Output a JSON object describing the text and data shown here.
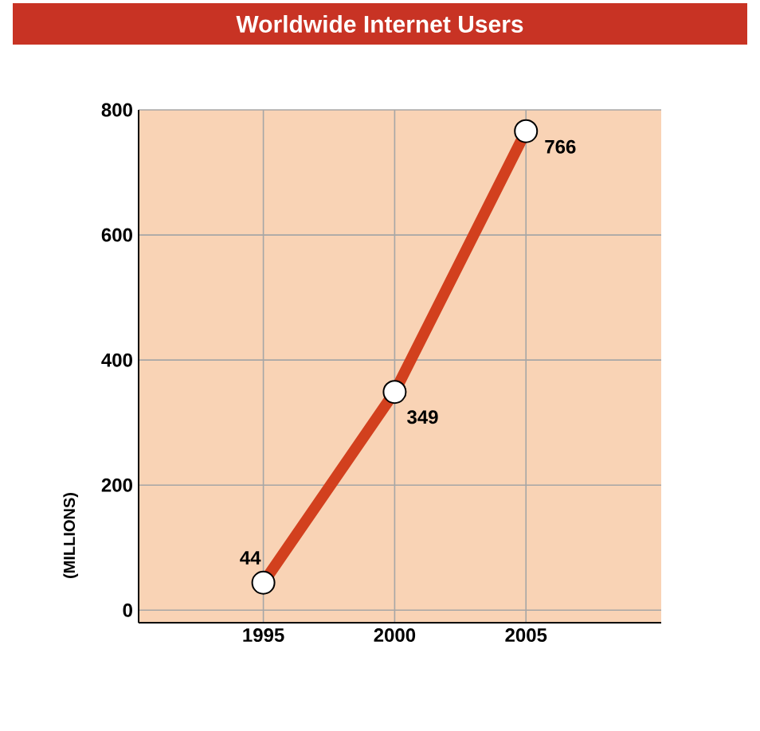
{
  "chart_data": {
    "type": "line",
    "title": "Worldwide Internet Users",
    "ylabel": "(MILLIONS)",
    "categories": [
      "1995",
      "2000",
      "2005"
    ],
    "series": [
      {
        "color": "#d2401e",
        "values": [
          44,
          349,
          766
        ]
      }
    ],
    "ylim": [
      -20,
      800
    ],
    "yticks": [
      0,
      200,
      400,
      600,
      800
    ],
    "grid": true,
    "marker": "circle",
    "line_style": "solid",
    "data_labels": true
  }
}
